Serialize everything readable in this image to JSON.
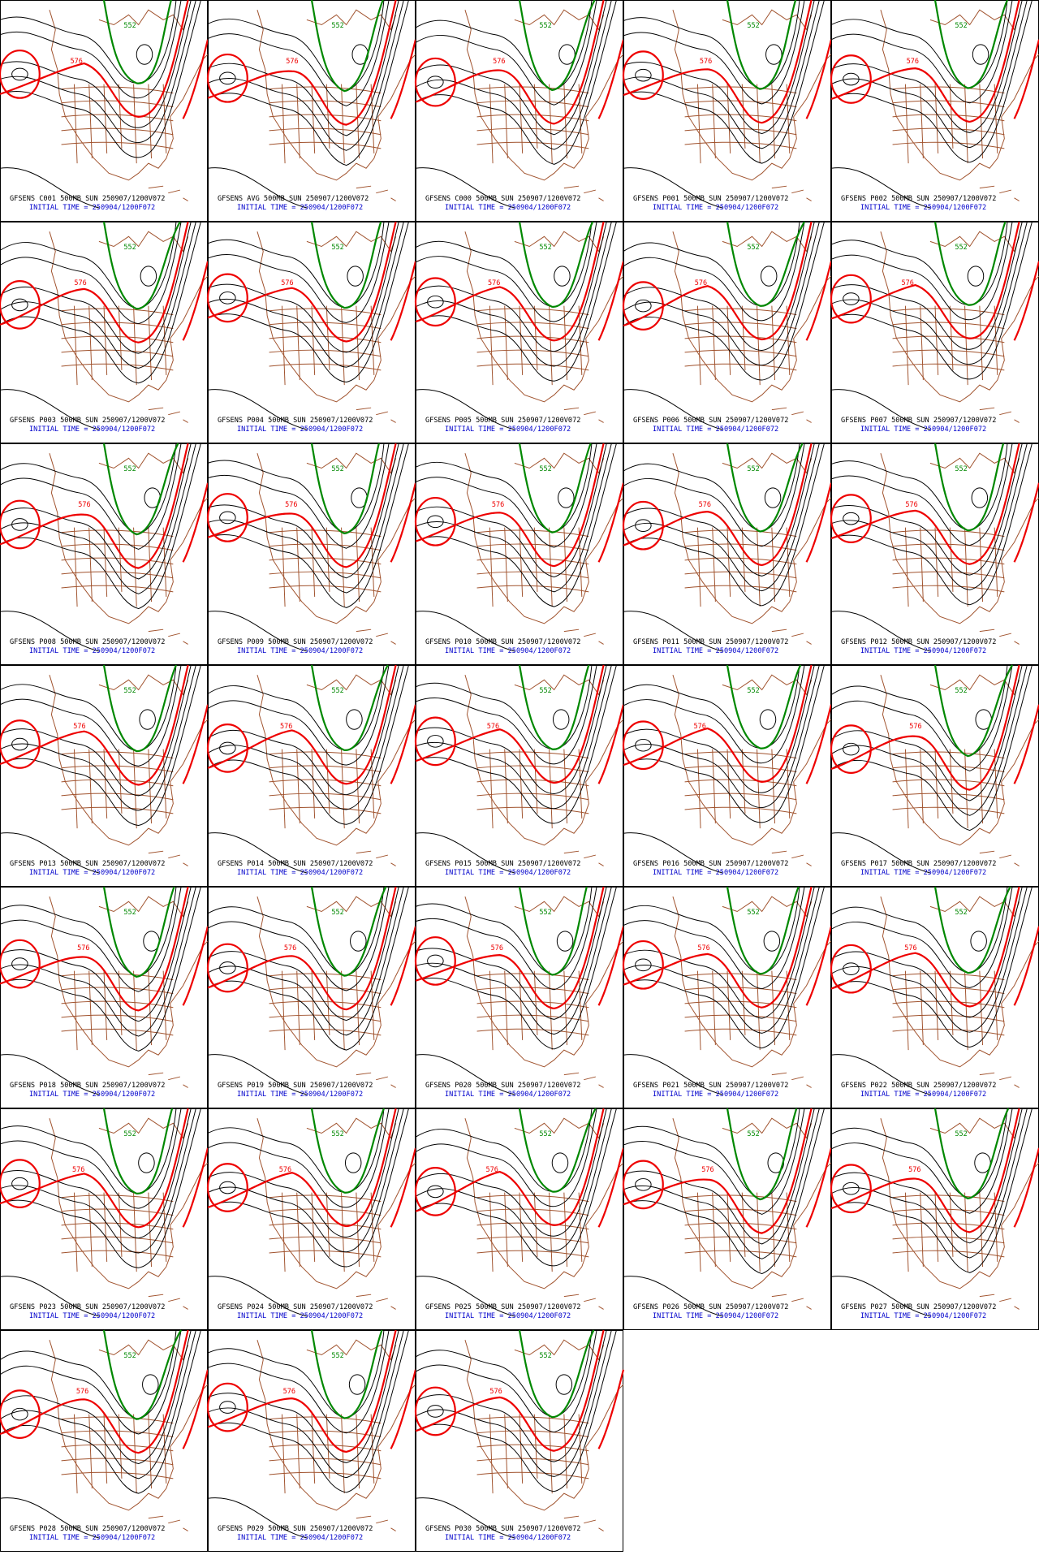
{
  "contour_labels": {
    "red": "576",
    "green": "552"
  },
  "panels": [
    {
      "title": "GFSENS C001 500MB SUN 250907/1200V072",
      "init": "INITIAL TIME = 250904/1200F072"
    },
    {
      "title": "GFSENS AVG 500MB SUN 250907/1200V072",
      "init": "INITIAL TIME = 250904/1200F072"
    },
    {
      "title": "GFSENS C000 500MB SUN 250907/1200V072",
      "init": "INITIAL TIME = 250904/1200F072"
    },
    {
      "title": "GFSENS P001 500MB SUN 250907/1200V072",
      "init": "INITIAL TIME = 250904/1200F072"
    },
    {
      "title": "GFSENS P002 500MB SUN 250907/1200V072",
      "init": "INITIAL TIME = 250904/1200F072"
    },
    {
      "title": "GFSENS P003 500MB SUN 250907/1200V072",
      "init": "INITIAL TIME = 250904/1200F072"
    },
    {
      "title": "GFSENS P004 500MB SUN 250907/1200V072",
      "init": "INITIAL TIME = 250904/1200F072"
    },
    {
      "title": "GFSENS P005 500MB SUN 250907/1200V072",
      "init": "INITIAL TIME = 250904/1200F072"
    },
    {
      "title": "GFSENS P006 500MB SUN 250907/1200V072",
      "init": "INITIAL TIME = 250904/1200F072"
    },
    {
      "title": "GFSENS P007 500MB SUN 250907/1200V072",
      "init": "INITIAL TIME = 250904/1200F072"
    },
    {
      "title": "GFSENS P008 500MB SUN 250907/1200V072",
      "init": "INITIAL TIME = 250904/1200F072"
    },
    {
      "title": "GFSENS P009 500MB SUN 250907/1200V072",
      "init": "INITIAL TIME = 250904/1200F072"
    },
    {
      "title": "GFSENS P010 500MB SUN 250907/1200V072",
      "init": "INITIAL TIME = 250904/1200F072"
    },
    {
      "title": "GFSENS P011 500MB SUN 250907/1200V072",
      "init": "INITIAL TIME = 250904/1200F072"
    },
    {
      "title": "GFSENS P012 500MB SUN 250907/1200V072",
      "init": "INITIAL TIME = 250904/1200F072"
    },
    {
      "title": "GFSENS P013 500MB SUN 250907/1200V072",
      "init": "INITIAL TIME = 250904/1200F072"
    },
    {
      "title": "GFSENS P014 500MB SUN 250907/1200V072",
      "init": "INITIAL TIME = 250904/1200F072"
    },
    {
      "title": "GFSENS P015 500MB SUN 250907/1200V072",
      "init": "INITIAL TIME = 250904/1200F072"
    },
    {
      "title": "GFSENS P016 500MB SUN 250907/1200V072",
      "init": "INITIAL TIME = 250904/1200F072"
    },
    {
      "title": "GFSENS P017 500MB SUN 250907/1200V072",
      "init": "INITIAL TIME = 250904/1200F072"
    },
    {
      "title": "GFSENS P018 500MB SUN 250907/1200V072",
      "init": "INITIAL TIME = 250904/1200F072"
    },
    {
      "title": "GFSENS P019 500MB SUN 250907/1200V072",
      "init": "INITIAL TIME = 250904/1200F072"
    },
    {
      "title": "GFSENS P020 500MB SUN 250907/1200V072",
      "init": "INITIAL TIME = 250904/1200F072"
    },
    {
      "title": "GFSENS P021 500MB SUN 250907/1200V072",
      "init": "INITIAL TIME = 250904/1200F072"
    },
    {
      "title": "GFSENS P022 500MB SUN 250907/1200V072",
      "init": "INITIAL TIME = 250904/1200F072"
    },
    {
      "title": "GFSENS P023 500MB SUN 250907/1200V072",
      "init": "INITIAL TIME = 250904/1200F072"
    },
    {
      "title": "GFSENS P024 500MB SUN 250907/1200V072",
      "init": "INITIAL TIME = 250904/1200F072"
    },
    {
      "title": "GFSENS P025 500MB SUN 250907/1200V072",
      "init": "INITIAL TIME = 250904/1200F072"
    },
    {
      "title": "GFSENS P026 500MB SUN 250907/1200V072",
      "init": "INITIAL TIME = 250904/1200F072"
    },
    {
      "title": "GFSENS P027 500MB SUN 250907/1200V072",
      "init": "INITIAL TIME = 250904/1200F072"
    },
    {
      "title": "GFSENS P028 500MB SUN 250907/1200V072",
      "init": "INITIAL TIME = 250904/1200F072"
    },
    {
      "title": "GFSENS P029 500MB SUN 250907/1200V072",
      "init": "INITIAL TIME = 250904/1200F072"
    },
    {
      "title": "GFSENS P030 500MB SUN 250907/1200V072",
      "init": "INITIAL TIME = 250904/1200F072"
    }
  ]
}
